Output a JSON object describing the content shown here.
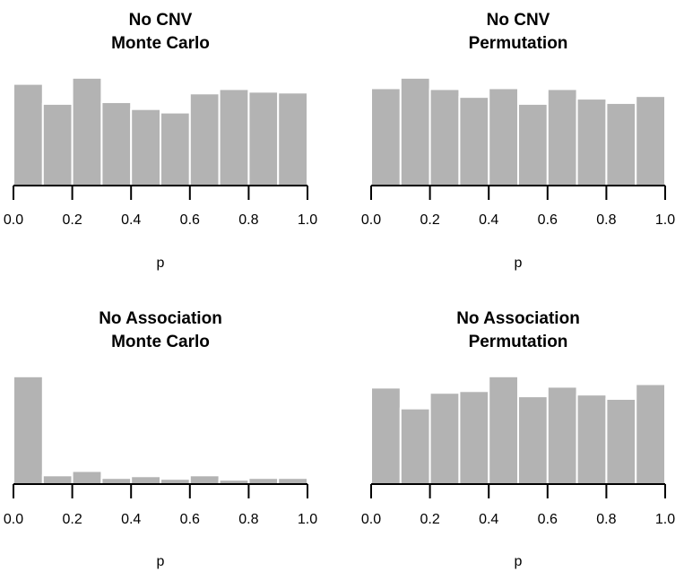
{
  "colors": {
    "bar_fill": "#b3b3b3",
    "bar_stroke": "#ffffff",
    "axis": "#000000",
    "background": "#ffffff"
  },
  "chart_data": [
    {
      "type": "bar",
      "title": [
        "No CNV",
        "Monte Carlo"
      ],
      "xlabel": "p",
      "ylabel": "",
      "xlim": [
        0.0,
        1.0
      ],
      "xticks": [
        "0.0",
        "0.2",
        "0.4",
        "0.6",
        "0.8",
        "1.0"
      ],
      "bin_edges": [
        0.0,
        0.1,
        0.2,
        0.3,
        0.4,
        0.5,
        0.6,
        0.7,
        0.8,
        0.9,
        1.0
      ],
      "values": [
        117,
        94,
        124,
        96,
        88,
        84,
        106,
        111,
        108,
        107
      ],
      "ylim": [
        0,
        130
      ],
      "grid": false
    },
    {
      "type": "bar",
      "title": [
        "No CNV",
        "Permutation"
      ],
      "xlabel": "p",
      "ylabel": "",
      "xlim": [
        0.0,
        1.0
      ],
      "xticks": [
        "0.0",
        "0.2",
        "0.4",
        "0.6",
        "0.8",
        "1.0"
      ],
      "bin_edges": [
        0.0,
        0.1,
        0.2,
        0.3,
        0.4,
        0.5,
        0.6,
        0.7,
        0.8,
        0.9,
        1.0
      ],
      "values": [
        112,
        124,
        111,
        102,
        112,
        94,
        111,
        100,
        95,
        103
      ],
      "ylim": [
        0,
        130
      ],
      "grid": false
    },
    {
      "type": "bar",
      "title": [
        "No Association",
        "Monte Carlo"
      ],
      "xlabel": "p",
      "ylabel": "",
      "xlim": [
        0.0,
        1.0
      ],
      "xticks": [
        "0.0",
        "0.2",
        "0.4",
        "0.6",
        "0.8",
        "1.0"
      ],
      "bin_edges": [
        0.0,
        0.1,
        0.2,
        0.3,
        0.4,
        0.5,
        0.6,
        0.7,
        0.8,
        0.9,
        1.0
      ],
      "values": [
        124,
        10,
        15,
        7,
        9,
        6,
        10,
        5,
        7,
        7
      ],
      "ylim": [
        0,
        130
      ],
      "grid": false
    },
    {
      "type": "bar",
      "title": [
        "No Association",
        "Permutation"
      ],
      "xlabel": "p",
      "ylabel": "",
      "xlim": [
        0.0,
        1.0
      ],
      "xticks": [
        "0.0",
        "0.2",
        "0.4",
        "0.6",
        "0.8",
        "1.0"
      ],
      "bin_edges": [
        0.0,
        0.1,
        0.2,
        0.3,
        0.4,
        0.5,
        0.6,
        0.7,
        0.8,
        0.9,
        1.0
      ],
      "values": [
        111,
        87,
        105,
        107,
        124,
        101,
        112,
        103,
        98,
        115
      ],
      "ylim": [
        0,
        130
      ],
      "grid": false
    }
  ]
}
